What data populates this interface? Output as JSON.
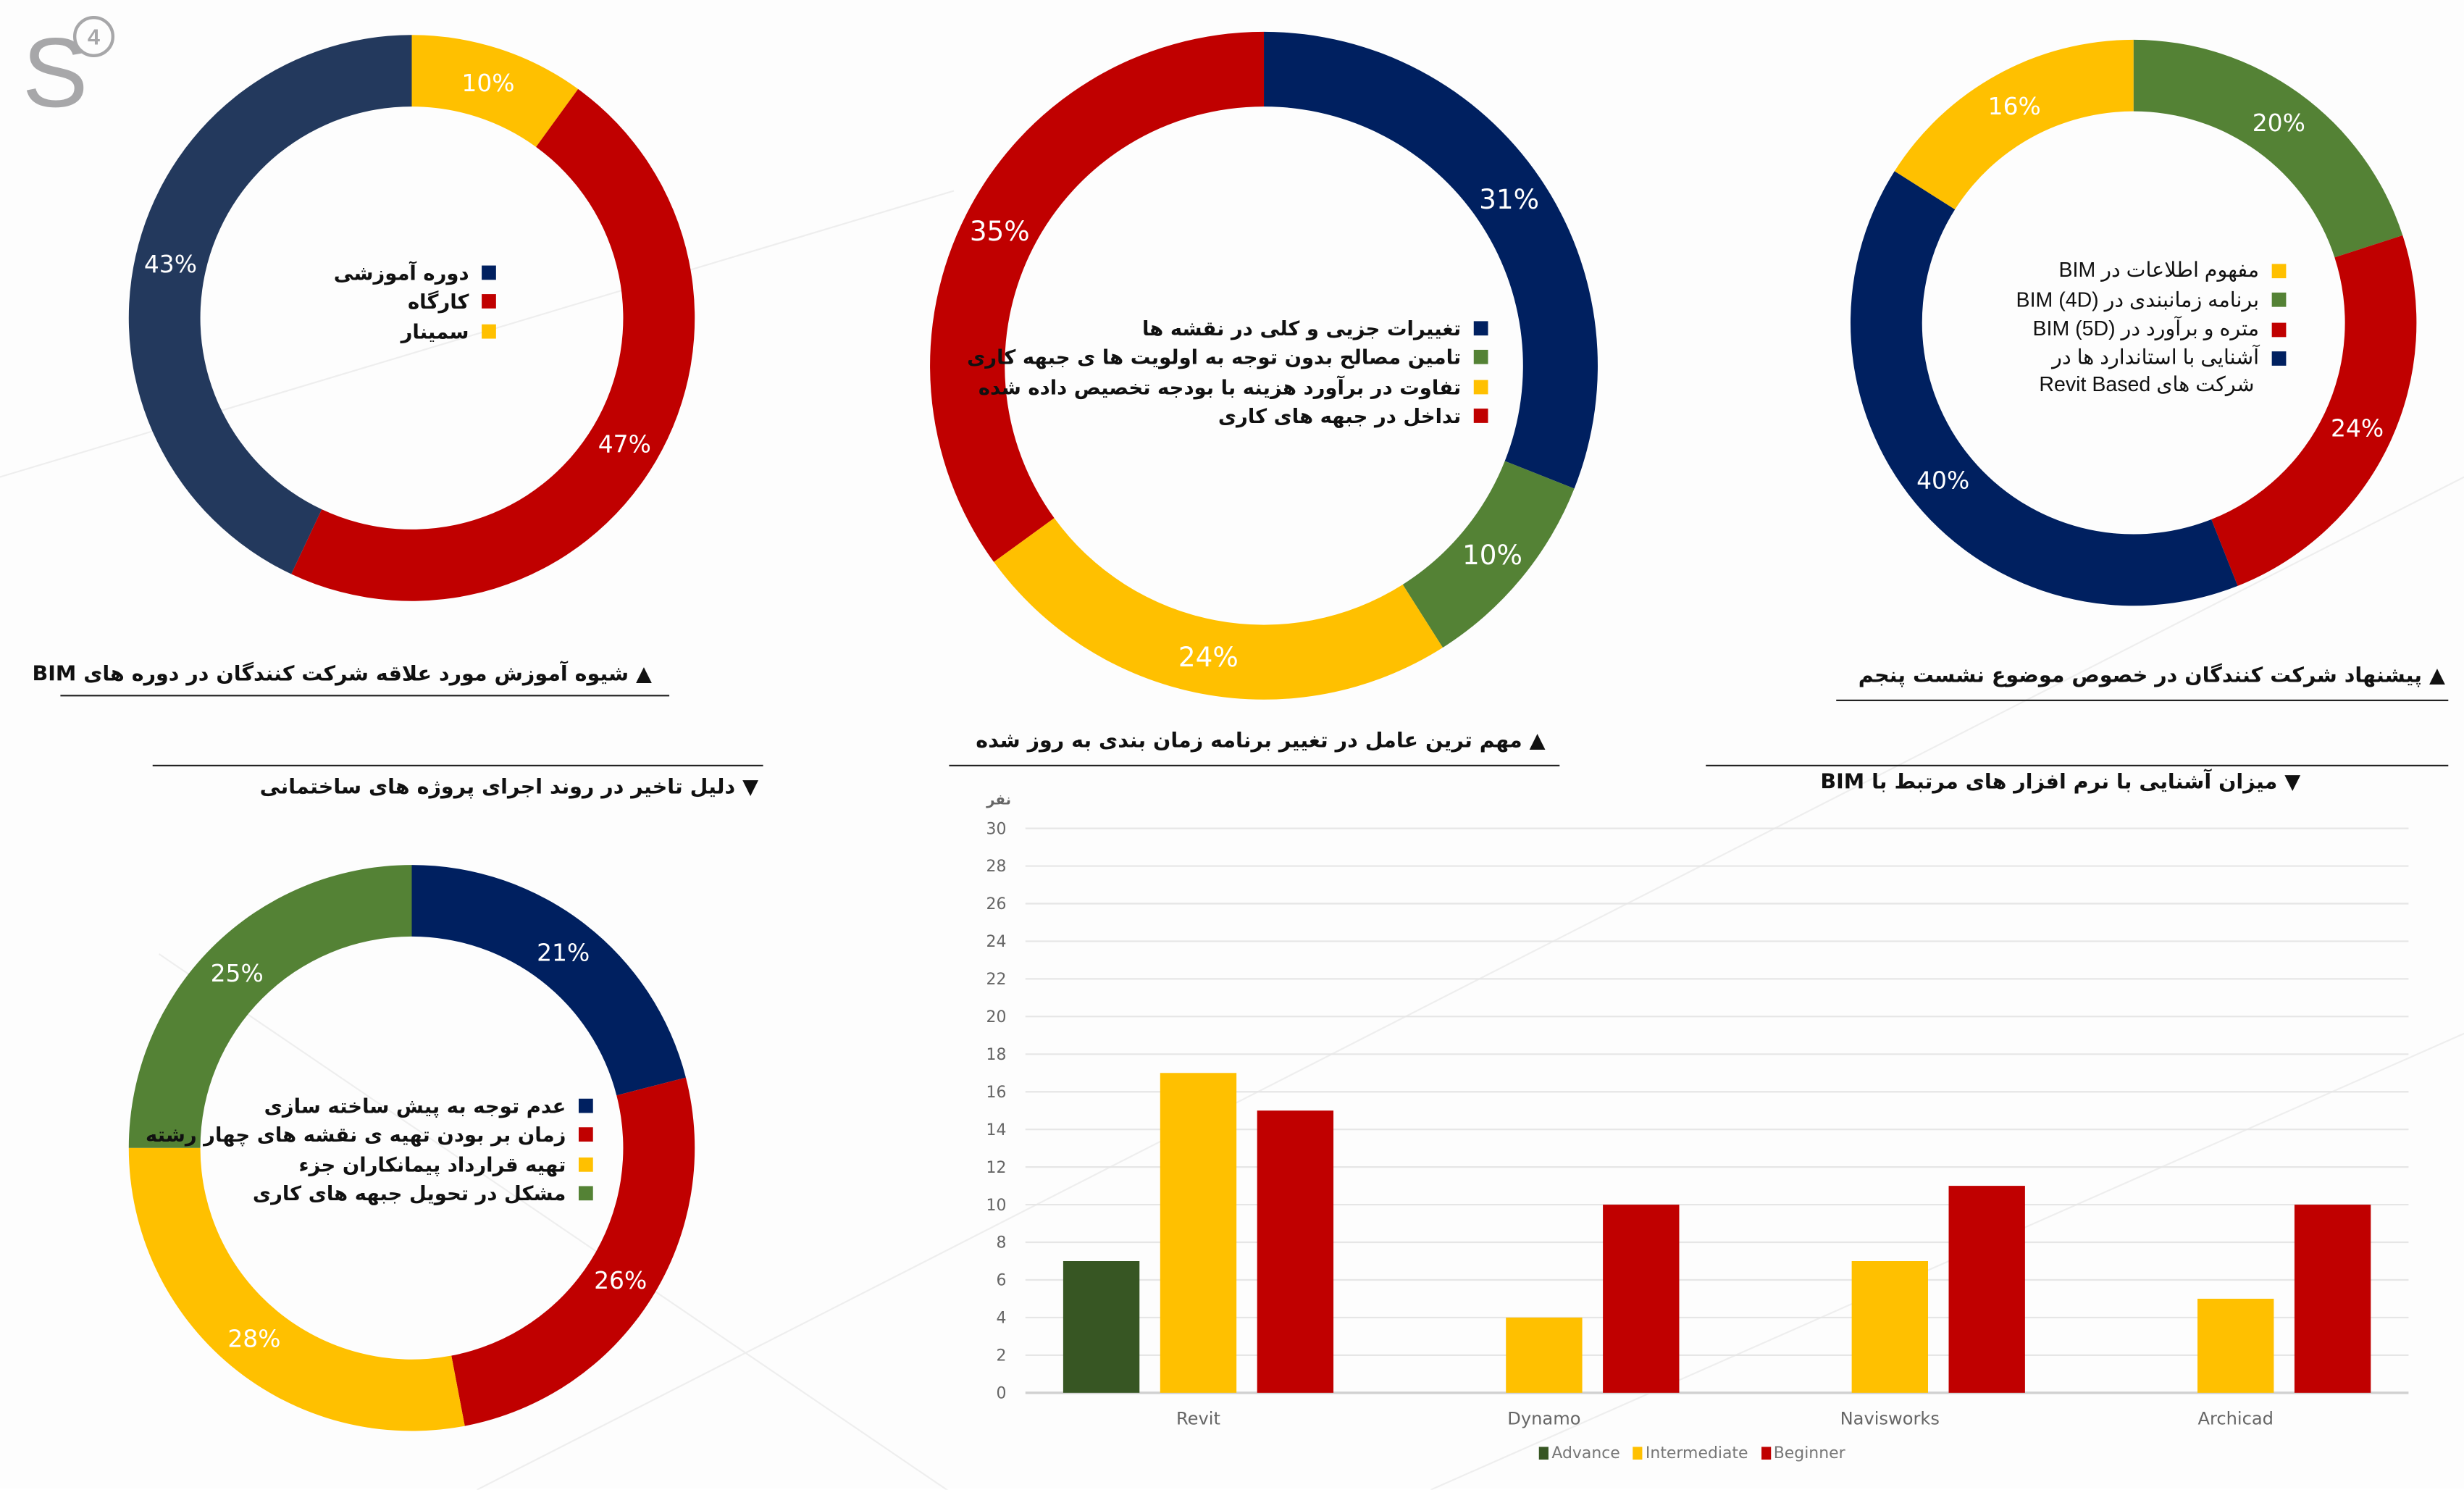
{
  "logo": {
    "letter": "S",
    "number": "4"
  },
  "colors": {
    "navy": "#1f3864",
    "navy_dark": "#002060",
    "red": "#c00000",
    "yellow": "#ffc000",
    "green": "#548235",
    "green_dark": "#375623"
  },
  "chart_data": [
    {
      "type": "pie",
      "title": "شیوه آموزش مورد علاقه شرکت کنندگان در دوره های BIM",
      "marker": "▲",
      "labels": [
        "سمینار",
        "کارگاه",
        "دوره آموزشی"
      ],
      "values": [
        10,
        47,
        43
      ],
      "value_labels": [
        "10%",
        "47%",
        "43%"
      ],
      "colors": [
        "#ffc000",
        "#c00000",
        "#23395d"
      ],
      "legend": [
        {
          "label": "دوره آموزشی",
          "color": "#002060"
        },
        {
          "label": "کارگاه",
          "color": "#c00000"
        },
        {
          "label": "سمینار",
          "color": "#ffc000"
        }
      ]
    },
    {
      "type": "pie",
      "title": "مهم ترین عامل در تغییر برنامه زمان بندی به روز شده",
      "marker": "▲",
      "labels": [
        "تغییرات جزیی و کلی در نقشه ها",
        "تامین مصالح بدون توجه به اولویت ها ی جبهه کاری",
        "تفاوت در برآورد هزینه با بودجه تخصیص داده شده",
        "تداخل در جبهه های کاری"
      ],
      "values": [
        31,
        10,
        24,
        35
      ],
      "value_labels": [
        "31%",
        "10%",
        "24%",
        "35%"
      ],
      "colors": [
        "#002060",
        "#548235",
        "#ffc000",
        "#c00000"
      ],
      "legend": [
        {
          "label": "تغییرات جزیی و کلی در نقشه ها",
          "color": "#002060"
        },
        {
          "label": "تامین مصالح بدون توجه به اولویت ها ی جبهه کاری",
          "color": "#548235"
        },
        {
          "label": "تفاوت در برآورد هزینه با بودجه تخصیص داده شده",
          "color": "#ffc000"
        },
        {
          "label": "تداخل در جبهه های کاری",
          "color": "#c00000"
        }
      ]
    },
    {
      "type": "pie",
      "title": "پیشنهاد شرکت کنندگان در خصوص موضوع نشست پنجم",
      "marker": "▲",
      "labels": [
        "برنامه زمانبندی در BIM (4D)",
        "متره و برآورد در BIM (5D)",
        "آشنایی با استاندارد ها در شرکت های Revit Based",
        "مفهوم اطلاعات در BIM"
      ],
      "values": [
        20,
        24,
        40,
        16
      ],
      "value_labels": [
        "20%",
        "24%",
        "40%",
        "16%"
      ],
      "colors": [
        "#548235",
        "#c00000",
        "#002060",
        "#ffc000"
      ],
      "legend": [
        {
          "label": "مفهوم اطلاعات در BIM",
          "color": "#ffc000"
        },
        {
          "label": "برنامه زمانبندی در BIM (4D)",
          "color": "#548235"
        },
        {
          "label": "متره و برآورد در BIM (5D)",
          "color": "#c00000"
        },
        {
          "label": "آشنایی با استاندارد ها در",
          "label2": "شرکت های Revit Based",
          "color": "#002060"
        }
      ]
    },
    {
      "type": "pie",
      "title": "دلیل تاخیر در روند اجرای پروژه های ساختمانی",
      "marker": "▼",
      "labels": [
        "عدم توجه به پیش ساخته سازی",
        "زمان بر بودن تهیه ی نقشه های چهار رشته",
        "تهیه قرارداد پیمانکاران جزء",
        "مشکل در تحویل جبهه های کاری"
      ],
      "values": [
        21,
        26,
        28,
        25
      ],
      "value_labels": [
        "21%",
        "26%",
        "28%",
        "25%"
      ],
      "colors": [
        "#002060",
        "#c00000",
        "#ffc000",
        "#548235"
      ],
      "legend": [
        {
          "label": "عدم توجه به پیش ساخته سازی",
          "color": "#002060"
        },
        {
          "label": "زمان بر بودن تهیه ی نقشه های چهار رشته",
          "color": "#c00000"
        },
        {
          "label": "تهیه قرارداد پیمانکاران جزء",
          "color": "#ffc000"
        },
        {
          "label": "مشکل در تحویل جبهه های کاری",
          "color": "#548235"
        }
      ]
    },
    {
      "type": "bar",
      "title": "میزان آشنایی با نرم افزار های مرتبط با BIM",
      "marker": "▼",
      "ylabel": "نفر",
      "ylim": [
        0,
        30
      ],
      "yticks": [
        "0",
        "2",
        "4",
        "6",
        "8",
        "10",
        "12",
        "14",
        "16",
        "18",
        "20",
        "22",
        "24",
        "26",
        "28",
        "30"
      ],
      "grid": true,
      "legend_position": "bottom",
      "categories": [
        "Revit",
        "Dynamo",
        "Navisworks",
        "Archicad"
      ],
      "series": [
        {
          "name": "Advance",
          "color": "#375623",
          "values": [
            7,
            0,
            0,
            0
          ]
        },
        {
          "name": "Intermediate",
          "color": "#ffc000",
          "values": [
            17,
            4,
            7,
            5
          ]
        },
        {
          "name": "Beginner",
          "color": "#c00000",
          "values": [
            15,
            10,
            11,
            10
          ]
        }
      ]
    }
  ]
}
